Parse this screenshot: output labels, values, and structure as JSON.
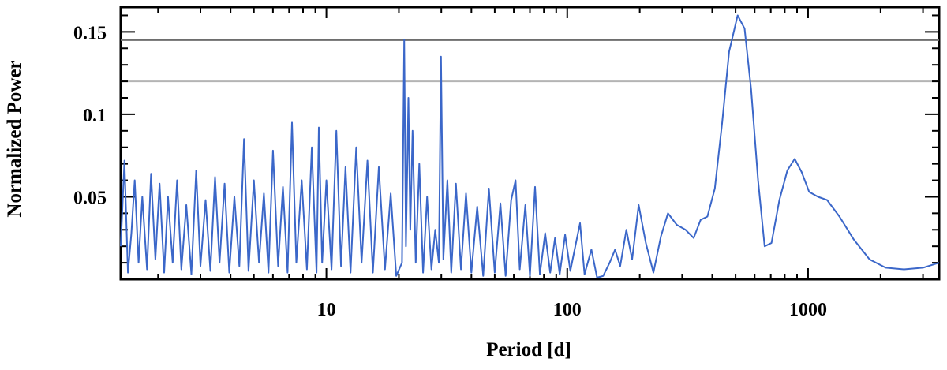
{
  "chart_data": {
    "type": "line",
    "title": "",
    "xlabel": "Period [d]",
    "ylabel": "Normalized Power",
    "x_scale": "log",
    "xlim": [
      1.4,
      3500
    ],
    "ylim": [
      0,
      0.165
    ],
    "x_ticks": [
      {
        "value": 10,
        "label": "10"
      },
      {
        "value": 100,
        "label": "100"
      },
      {
        "value": 1000,
        "label": "1000"
      }
    ],
    "y_ticks": [
      {
        "value": 0.05,
        "label": "0.05"
      },
      {
        "value": 0.1,
        "label": "0.1"
      },
      {
        "value": 0.15,
        "label": "0.15"
      }
    ],
    "grid": false,
    "legend": "none",
    "threshold_lines": [
      {
        "value": 0.145,
        "color": "#6e6e6e"
      },
      {
        "value": 0.12,
        "color": "#b4b4b4"
      }
    ],
    "series": [
      {
        "color": "#3b67c9",
        "points": [
          [
            1.4,
            0.02
          ],
          [
            1.45,
            0.072
          ],
          [
            1.5,
            0.004
          ],
          [
            1.55,
            0.028
          ],
          [
            1.6,
            0.06
          ],
          [
            1.66,
            0.01
          ],
          [
            1.72,
            0.05
          ],
          [
            1.8,
            0.006
          ],
          [
            1.87,
            0.064
          ],
          [
            1.95,
            0.012
          ],
          [
            2.03,
            0.058
          ],
          [
            2.12,
            0.004
          ],
          [
            2.2,
            0.05
          ],
          [
            2.3,
            0.01
          ],
          [
            2.4,
            0.06
          ],
          [
            2.5,
            0.006
          ],
          [
            2.62,
            0.045
          ],
          [
            2.75,
            0.003
          ],
          [
            2.88,
            0.066
          ],
          [
            3.0,
            0.008
          ],
          [
            3.15,
            0.048
          ],
          [
            3.3,
            0.005
          ],
          [
            3.45,
            0.062
          ],
          [
            3.6,
            0.01
          ],
          [
            3.78,
            0.058
          ],
          [
            3.95,
            0.004
          ],
          [
            4.15,
            0.05
          ],
          [
            4.35,
            0.008
          ],
          [
            4.55,
            0.085
          ],
          [
            4.75,
            0.005
          ],
          [
            5.0,
            0.06
          ],
          [
            5.25,
            0.01
          ],
          [
            5.5,
            0.052
          ],
          [
            5.75,
            0.004
          ],
          [
            6.0,
            0.078
          ],
          [
            6.3,
            0.008
          ],
          [
            6.6,
            0.056
          ],
          [
            6.9,
            0.004
          ],
          [
            7.2,
            0.095
          ],
          [
            7.5,
            0.01
          ],
          [
            7.9,
            0.06
          ],
          [
            8.3,
            0.006
          ],
          [
            8.7,
            0.08
          ],
          [
            9.1,
            0.004
          ],
          [
            9.3,
            0.092
          ],
          [
            9.6,
            0.01
          ],
          [
            10.0,
            0.06
          ],
          [
            10.5,
            0.006
          ],
          [
            11.0,
            0.09
          ],
          [
            11.5,
            0.008
          ],
          [
            12.0,
            0.068
          ],
          [
            12.6,
            0.004
          ],
          [
            13.3,
            0.08
          ],
          [
            14.0,
            0.01
          ],
          [
            14.8,
            0.072
          ],
          [
            15.6,
            0.004
          ],
          [
            16.5,
            0.068
          ],
          [
            17.5,
            0.006
          ],
          [
            18.5,
            0.052
          ],
          [
            19.5,
            0.002
          ],
          [
            20.6,
            0.01
          ],
          [
            21.05,
            0.145
          ],
          [
            21.4,
            0.02
          ],
          [
            21.9,
            0.11
          ],
          [
            22.3,
            0.03
          ],
          [
            22.8,
            0.09
          ],
          [
            23.5,
            0.01
          ],
          [
            24.3,
            0.07
          ],
          [
            25.2,
            0.004
          ],
          [
            26.2,
            0.05
          ],
          [
            27.3,
            0.006
          ],
          [
            28.3,
            0.03
          ],
          [
            29.3,
            0.01
          ],
          [
            29.9,
            0.135
          ],
          [
            30.6,
            0.012
          ],
          [
            31.8,
            0.06
          ],
          [
            33.0,
            0.004
          ],
          [
            34.5,
            0.058
          ],
          [
            36.2,
            0.006
          ],
          [
            38.0,
            0.052
          ],
          [
            40.0,
            0.004
          ],
          [
            42.3,
            0.044
          ],
          [
            44.8,
            0.002
          ],
          [
            47.3,
            0.055
          ],
          [
            50.0,
            0.004
          ],
          [
            52.8,
            0.046
          ],
          [
            55.5,
            0.002
          ],
          [
            58.5,
            0.048
          ],
          [
            61.0,
            0.06
          ],
          [
            63.5,
            0.006
          ],
          [
            67.0,
            0.045
          ],
          [
            70.0,
            0.002
          ],
          [
            73.5,
            0.056
          ],
          [
            77.0,
            0.003
          ],
          [
            81.0,
            0.028
          ],
          [
            85.0,
            0.004
          ],
          [
            89.0,
            0.025
          ],
          [
            93.0,
            0.003
          ],
          [
            98.0,
            0.027
          ],
          [
            103.0,
            0.005
          ],
          [
            108.0,
            0.02
          ],
          [
            113.0,
            0.034
          ],
          [
            118.0,
            0.003
          ],
          [
            126.0,
            0.018
          ],
          [
            133.0,
            0.001
          ],
          [
            141.0,
            0.002
          ],
          [
            150.0,
            0.01
          ],
          [
            158.0,
            0.018
          ],
          [
            166.0,
            0.008
          ],
          [
            176.0,
            0.03
          ],
          [
            186.0,
            0.012
          ],
          [
            198.0,
            0.045
          ],
          [
            212.0,
            0.022
          ],
          [
            228.0,
            0.004
          ],
          [
            245.0,
            0.026
          ],
          [
            262.0,
            0.04
          ],
          [
            285.0,
            0.033
          ],
          [
            310.0,
            0.03
          ],
          [
            335.0,
            0.025
          ],
          [
            358.0,
            0.036
          ],
          [
            382.0,
            0.038
          ],
          [
            410.0,
            0.055
          ],
          [
            440.0,
            0.095
          ],
          [
            470.0,
            0.138
          ],
          [
            510.0,
            0.16
          ],
          [
            545.0,
            0.152
          ],
          [
            580.0,
            0.115
          ],
          [
            620.0,
            0.06
          ],
          [
            660.0,
            0.02
          ],
          [
            705.0,
            0.022
          ],
          [
            760.0,
            0.048
          ],
          [
            820.0,
            0.066
          ],
          [
            880.0,
            0.073
          ],
          [
            940.0,
            0.065
          ],
          [
            1010.0,
            0.053
          ],
          [
            1100.0,
            0.05
          ],
          [
            1200.0,
            0.048
          ],
          [
            1350.0,
            0.038
          ],
          [
            1550.0,
            0.024
          ],
          [
            1800.0,
            0.012
          ],
          [
            2100.0,
            0.007
          ],
          [
            2500.0,
            0.006
          ],
          [
            3000.0,
            0.007
          ],
          [
            3500.0,
            0.01
          ]
        ]
      }
    ]
  }
}
